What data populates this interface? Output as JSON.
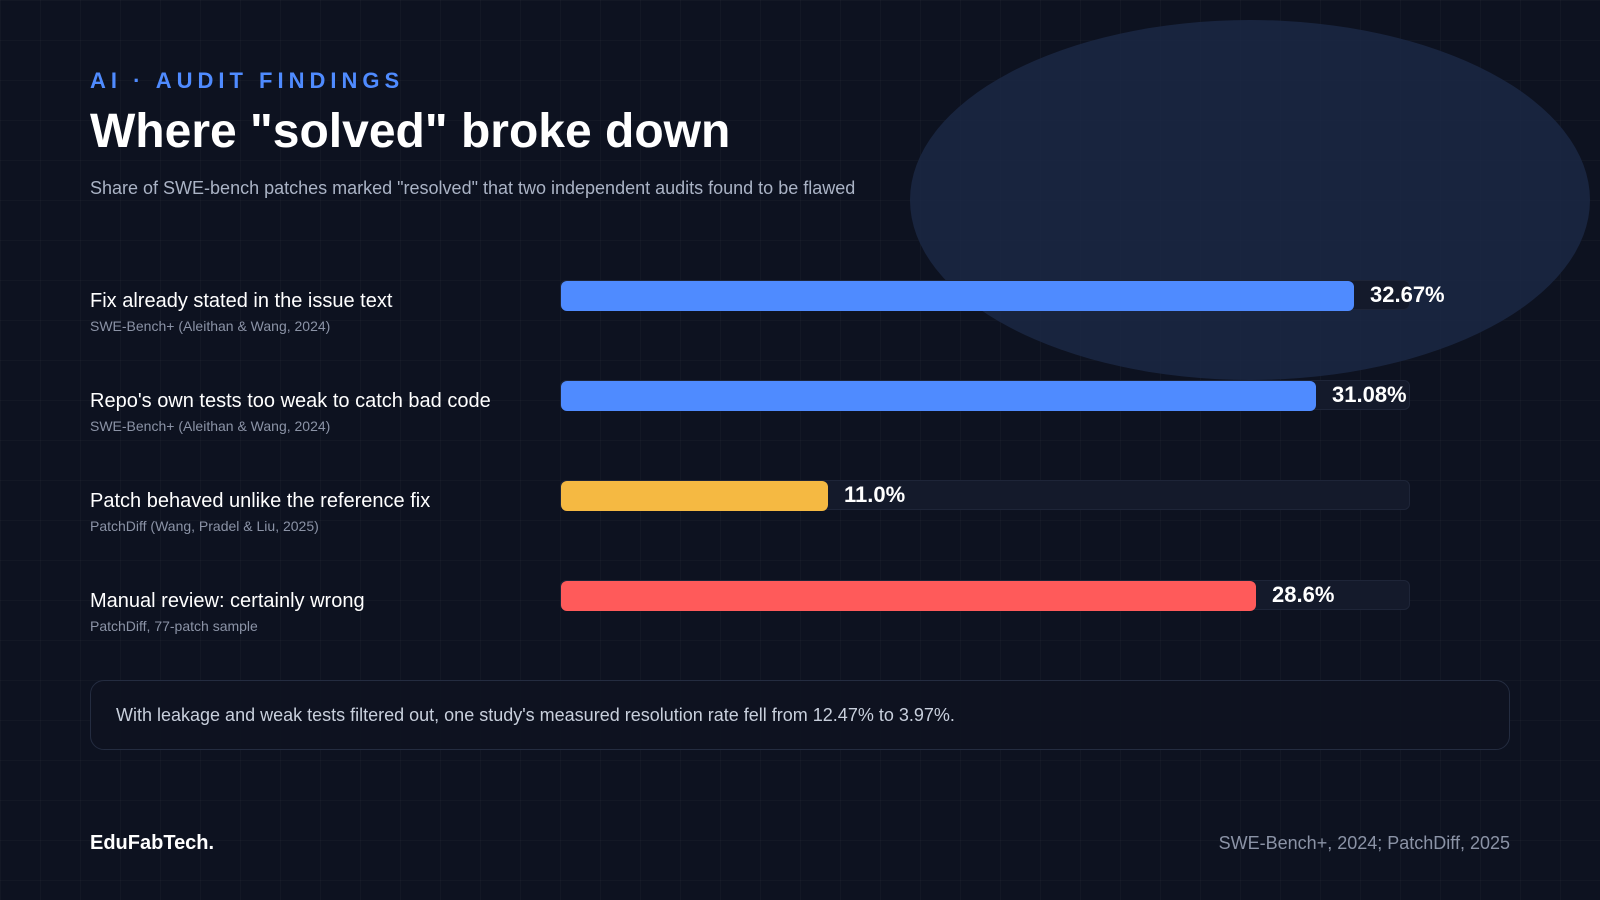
{
  "header": {
    "eyebrow": "AI · AUDIT FINDINGS",
    "title": "Where \"solved\" broke down",
    "subtitle": "Share of SWE-bench patches marked \"resolved\" that two independent audits found to be flawed"
  },
  "chart_data": {
    "type": "bar",
    "orientation": "horizontal",
    "xlim": [
      0,
      35
    ],
    "categories": [
      "Fix already stated in the issue text",
      "Repo's own tests too weak to catch bad code",
      "Patch behaved unlike the reference fix",
      "Manual review: certainly wrong"
    ],
    "sources": [
      "SWE-Bench+ (Aleithan & Wang, 2024)",
      "SWE-Bench+ (Aleithan & Wang, 2024)",
      "PatchDiff (Wang, Pradel & Liu, 2025)",
      "PatchDiff, 77-patch sample"
    ],
    "values": [
      32.67,
      31.08,
      11.0,
      28.6
    ],
    "value_labels": [
      "32.67%",
      "31.08%",
      "11.0%",
      "28.6%"
    ],
    "colors": [
      "#4f8bff",
      "#4f8bff",
      "#f5b942",
      "#ff5a5a"
    ],
    "grid": false,
    "legend": "none"
  },
  "callout": {
    "text": "With leakage and weak tests filtered out, one study's measured resolution rate fell from 12.47% to 3.97%."
  },
  "footer": {
    "brand": "EduFabTech.",
    "citation": "SWE-Bench+, 2024; PatchDiff, 2025"
  }
}
